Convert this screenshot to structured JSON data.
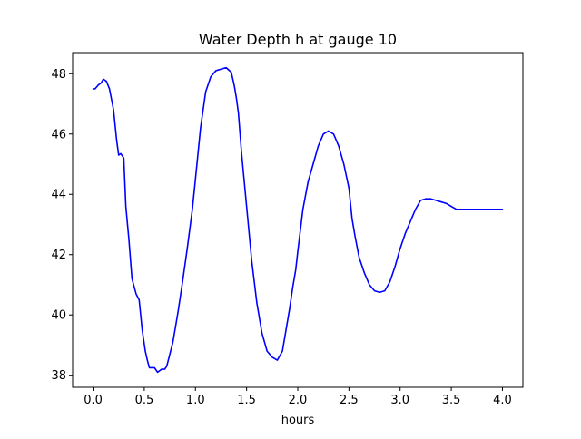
{
  "chart_data": {
    "type": "line",
    "title": "Water Depth h at gauge 10",
    "xlabel": "hours",
    "ylabel": "",
    "xlim": [
      -0.2,
      4.2
    ],
    "ylim": [
      37.6,
      48.7
    ],
    "grid": false,
    "x_ticks": [
      0.0,
      0.5,
      1.0,
      1.5,
      2.0,
      2.5,
      3.0,
      3.5,
      4.0
    ],
    "x_tick_labels": [
      "0.0",
      "0.5",
      "1.0",
      "1.5",
      "2.0",
      "2.5",
      "3.0",
      "3.5",
      "4.0"
    ],
    "y_ticks": [
      38,
      40,
      42,
      44,
      46,
      48
    ],
    "y_tick_labels": [
      "38",
      "40",
      "42",
      "44",
      "46",
      "48"
    ],
    "series": [
      {
        "color": "#0000ff",
        "x": [
          0.0,
          0.02,
          0.05,
          0.08,
          0.1,
          0.13,
          0.16,
          0.2,
          0.23,
          0.25,
          0.27,
          0.3,
          0.32,
          0.35,
          0.38,
          0.42,
          0.45,
          0.48,
          0.51,
          0.53,
          0.55,
          0.57,
          0.6,
          0.63,
          0.65,
          0.67,
          0.7,
          0.72,
          0.75,
          0.78,
          0.8,
          0.83,
          0.87,
          0.92,
          0.97,
          1.0,
          1.05,
          1.1,
          1.15,
          1.2,
          1.25,
          1.3,
          1.35,
          1.38,
          1.4,
          1.42,
          1.45,
          1.5,
          1.55,
          1.6,
          1.65,
          1.7,
          1.75,
          1.8,
          1.85,
          1.88,
          1.92,
          1.95,
          1.98,
          2.0,
          2.05,
          2.1,
          2.15,
          2.2,
          2.25,
          2.3,
          2.35,
          2.4,
          2.45,
          2.5,
          2.53,
          2.56,
          2.6,
          2.65,
          2.7,
          2.75,
          2.8,
          2.85,
          2.9,
          2.95,
          3.0,
          3.05,
          3.1,
          3.15,
          3.2,
          3.25,
          3.3,
          3.35,
          3.4,
          3.45,
          3.5,
          3.55,
          3.6,
          3.65,
          3.7,
          3.75,
          3.8,
          3.85,
          3.9,
          3.95,
          4.0
        ],
        "y": [
          47.5,
          47.5,
          47.62,
          47.7,
          47.82,
          47.75,
          47.5,
          46.8,
          45.8,
          45.3,
          45.35,
          45.2,
          43.6,
          42.5,
          41.2,
          40.7,
          40.5,
          39.5,
          38.8,
          38.5,
          38.25,
          38.25,
          38.25,
          38.1,
          38.15,
          38.2,
          38.2,
          38.3,
          38.7,
          39.1,
          39.5,
          40.1,
          41.0,
          42.2,
          43.5,
          44.5,
          46.2,
          47.4,
          47.9,
          48.1,
          48.15,
          48.2,
          48.05,
          47.6,
          47.2,
          46.7,
          45.4,
          43.6,
          41.8,
          40.4,
          39.4,
          38.8,
          38.6,
          38.5,
          38.8,
          39.4,
          40.2,
          40.9,
          41.5,
          42.1,
          43.5,
          44.4,
          45.0,
          45.6,
          46.0,
          46.1,
          46.0,
          45.6,
          45.0,
          44.2,
          43.2,
          42.6,
          41.9,
          41.4,
          41.0,
          40.8,
          40.75,
          40.8,
          41.1,
          41.6,
          42.2,
          42.7,
          43.1,
          43.5,
          43.8,
          43.85,
          43.85,
          43.8,
          43.75,
          43.7,
          43.6,
          43.5,
          43.5,
          43.5,
          43.5,
          43.5,
          43.5,
          43.5,
          43.5,
          43.5,
          43.5
        ]
      }
    ]
  }
}
